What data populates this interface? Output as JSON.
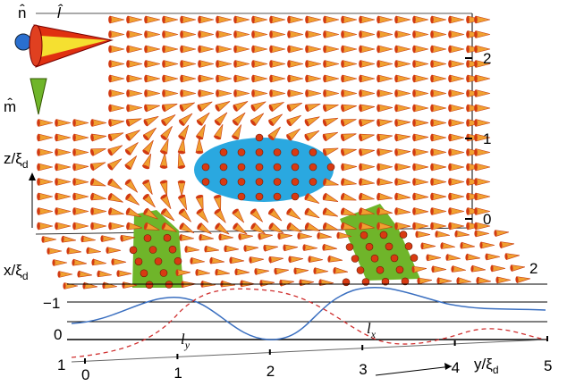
{
  "figure": {
    "triad": {
      "n": "n̂",
      "l": "l̂",
      "m": "m̂"
    },
    "axes": {
      "z": {
        "label": "z/ξ",
        "sub": "d",
        "ticks": [
          "0",
          "1",
          "2"
        ]
      },
      "x": {
        "label": "x/ξ",
        "sub": "d",
        "ticks": [
          "−1",
          "0",
          "1",
          "2"
        ]
      },
      "y": {
        "label": "y/ξ",
        "sub": "d",
        "ticks": [
          "0",
          "1",
          "2",
          "3",
          "4",
          "5"
        ]
      }
    },
    "annotations": {
      "ly": {
        "text": "l",
        "sub": "y"
      },
      "lx": {
        "text": "l",
        "sub": "x"
      }
    }
  }
}
